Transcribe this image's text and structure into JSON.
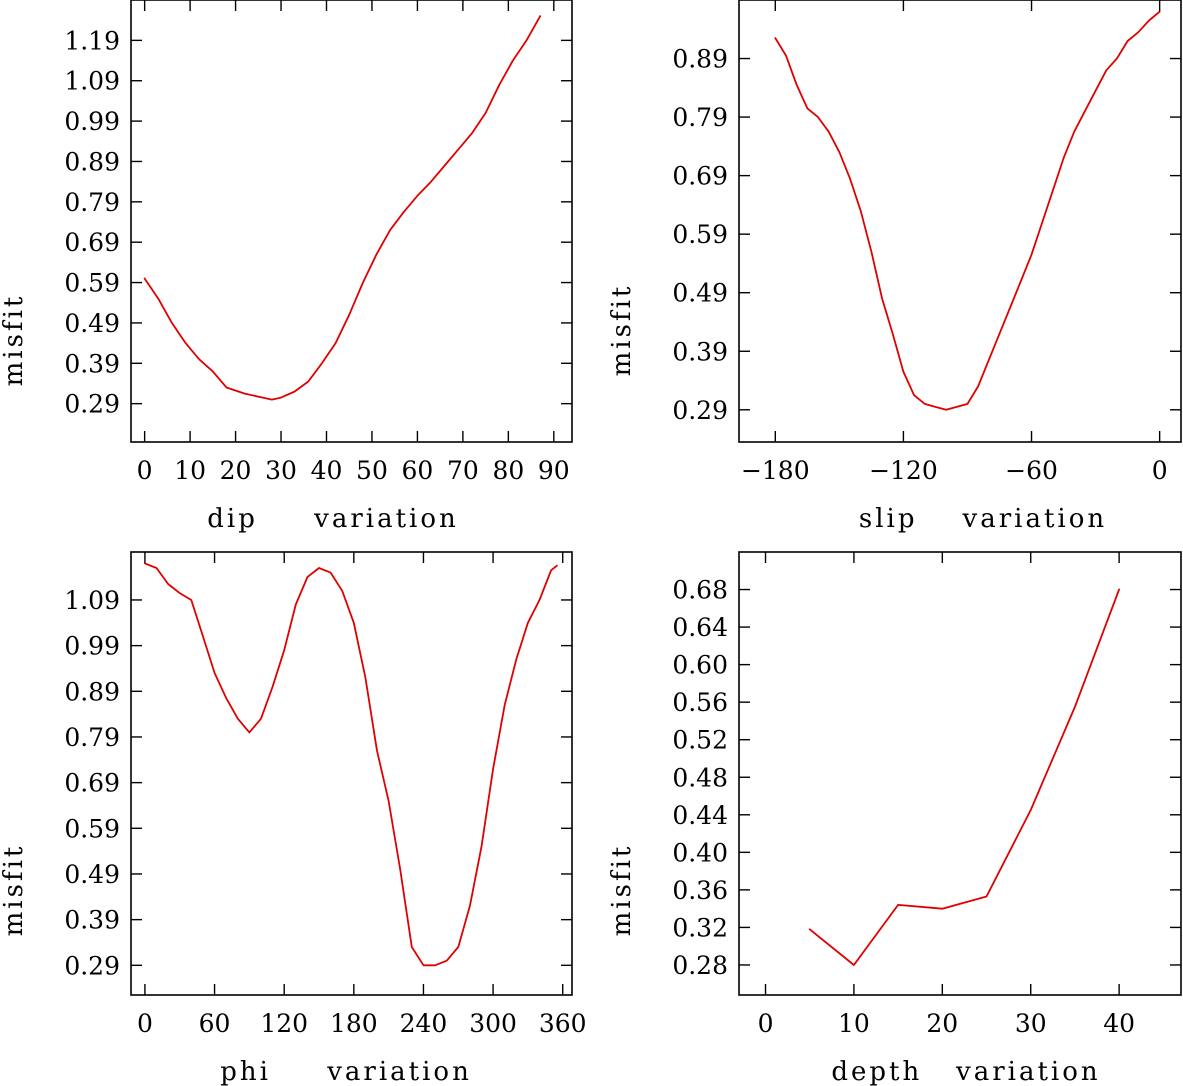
{
  "colors": {
    "line": "#e00000",
    "axis": "#000000",
    "background": "#ffffff"
  },
  "chart_data": [
    {
      "type": "line",
      "id": "dip",
      "xlabel": "dip     variation",
      "ylabel": "misfit",
      "xlim": [
        -3,
        94
      ],
      "ylim": [
        0.195,
        1.29
      ],
      "x_ticks": [
        0,
        10,
        20,
        30,
        40,
        50,
        60,
        70,
        80,
        90
      ],
      "x_tick_labels": [
        "0",
        "10",
        "20",
        "30",
        "40",
        "50",
        "60",
        "70",
        "80",
        "90"
      ],
      "y_ticks": [
        0.29,
        0.39,
        0.49,
        0.59,
        0.69,
        0.79,
        0.89,
        0.99,
        1.09,
        1.19
      ],
      "y_tick_labels": [
        "0.29",
        "0.39",
        "0.49",
        "0.59",
        "0.69",
        "0.79",
        "0.89",
        "0.99",
        "1.09",
        "1.19"
      ],
      "x": [
        0,
        3,
        6,
        9,
        12,
        15,
        18,
        22,
        26,
        28,
        30,
        33,
        36,
        39,
        42,
        45,
        48,
        51,
        54,
        57,
        60,
        63,
        66,
        69,
        72,
        75,
        78,
        81,
        84,
        87
      ],
      "y": [
        0.6,
        0.55,
        0.49,
        0.44,
        0.4,
        0.37,
        0.33,
        0.315,
        0.305,
        0.3,
        0.305,
        0.32,
        0.345,
        0.39,
        0.44,
        0.51,
        0.59,
        0.66,
        0.72,
        0.765,
        0.805,
        0.84,
        0.88,
        0.92,
        0.96,
        1.01,
        1.08,
        1.14,
        1.19,
        1.25
      ]
    },
    {
      "type": "line",
      "id": "slip",
      "xlabel": "slip    variation",
      "ylabel": "misfit",
      "xlim": [
        -197,
        10
      ],
      "ylim": [
        0.235,
        0.99
      ],
      "x_ticks": [
        -180,
        -120,
        -60,
        0
      ],
      "x_tick_labels": [
        "−180",
        "−120",
        "−60",
        "0"
      ],
      "y_ticks": [
        0.29,
        0.39,
        0.49,
        0.59,
        0.69,
        0.79,
        0.89
      ],
      "y_tick_labels": [
        "0.29",
        "0.39",
        "0.49",
        "0.59",
        "0.69",
        "0.79",
        "0.89"
      ],
      "x": [
        -180,
        -175,
        -170,
        -165,
        -160,
        -155,
        -150,
        -145,
        -140,
        -135,
        -130,
        -125,
        -120,
        -115,
        -110,
        -105,
        -100,
        -95,
        -90,
        -85,
        -80,
        -75,
        -70,
        -65,
        -60,
        -55,
        -50,
        -45,
        -40,
        -35,
        -30,
        -25,
        -20,
        -15,
        -10,
        -5,
        0
      ],
      "y": [
        0.925,
        0.895,
        0.845,
        0.805,
        0.79,
        0.765,
        0.73,
        0.685,
        0.63,
        0.56,
        0.48,
        0.42,
        0.355,
        0.315,
        0.3,
        0.295,
        0.29,
        0.295,
        0.3,
        0.33,
        0.375,
        0.42,
        0.465,
        0.51,
        0.555,
        0.61,
        0.665,
        0.72,
        0.765,
        0.8,
        0.835,
        0.87,
        0.89,
        0.92,
        0.935,
        0.955,
        0.97
      ]
    },
    {
      "type": "line",
      "id": "phi",
      "xlabel": "phi     variation",
      "ylabel": "misfit",
      "xlim": [
        -12,
        368
      ],
      "ylim": [
        0.225,
        1.195
      ],
      "x_ticks": [
        0,
        60,
        120,
        180,
        240,
        300,
        360
      ],
      "x_tick_labels": [
        "0",
        "60",
        "120",
        "180",
        "240",
        "300",
        "360"
      ],
      "y_ticks": [
        0.29,
        0.39,
        0.49,
        0.59,
        0.69,
        0.79,
        0.89,
        0.99,
        1.09
      ],
      "y_tick_labels": [
        "0.29",
        "0.39",
        "0.49",
        "0.59",
        "0.69",
        "0.79",
        "0.89",
        "0.99",
        "1.09"
      ],
      "x": [
        0,
        10,
        20,
        30,
        40,
        50,
        60,
        70,
        80,
        90,
        100,
        110,
        120,
        130,
        140,
        150,
        160,
        170,
        180,
        190,
        200,
        210,
        220,
        230,
        240,
        250,
        260,
        270,
        280,
        290,
        300,
        310,
        320,
        330,
        340,
        350,
        355
      ],
      "y": [
        1.17,
        1.16,
        1.125,
        1.105,
        1.09,
        1.01,
        0.93,
        0.875,
        0.83,
        0.8,
        0.83,
        0.9,
        0.98,
        1.08,
        1.14,
        1.16,
        1.15,
        1.11,
        1.04,
        0.92,
        0.76,
        0.65,
        0.5,
        0.33,
        0.29,
        0.29,
        0.3,
        0.33,
        0.42,
        0.55,
        0.72,
        0.86,
        0.96,
        1.04,
        1.09,
        1.155,
        1.165
      ]
    },
    {
      "type": "line",
      "id": "depth",
      "xlabel": "depth   variation",
      "ylabel": "misfit",
      "xlim": [
        -3,
        47
      ],
      "ylim": [
        0.248,
        0.72
      ],
      "x_ticks": [
        0,
        10,
        20,
        30,
        40
      ],
      "x_tick_labels": [
        "0",
        "10",
        "20",
        "30",
        "40"
      ],
      "y_ticks": [
        0.28,
        0.32,
        0.36,
        0.4,
        0.44,
        0.48,
        0.52,
        0.56,
        0.6,
        0.64,
        0.68
      ],
      "y_tick_labels": [
        "0.28",
        "0.32",
        "0.36",
        "0.40",
        "0.44",
        "0.48",
        "0.52",
        "0.56",
        "0.60",
        "0.64",
        "0.68"
      ],
      "x": [
        5,
        10,
        15,
        20,
        25,
        30,
        35,
        40
      ],
      "y": [
        0.318,
        0.28,
        0.344,
        0.34,
        0.353,
        0.445,
        0.555,
        0.68
      ]
    }
  ]
}
